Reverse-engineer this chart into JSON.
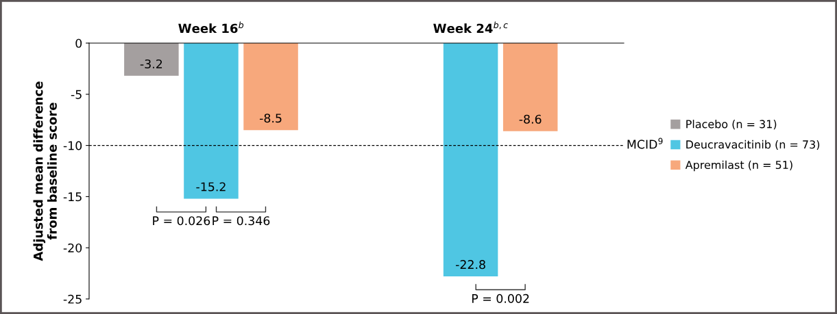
{
  "chart_data": {
    "type": "bar",
    "ylabel": "Adjusted mean difference\nfrom baseline score",
    "categories": [
      "Week 16$^{b}$",
      "Week 24$^{b,c}$"
    ],
    "series": [
      {
        "name": "Placebo (n = 31)",
        "color": "#a49f9f",
        "values": [
          -3.2,
          null
        ]
      },
      {
        "name": "Deucravacitinib (n = 73)",
        "color": "#4fc6e3",
        "values": [
          -15.2,
          -22.8
        ]
      },
      {
        "name": "Apremilast (n = 51)",
        "color": "#f7a87c",
        "values": [
          -8.5,
          -8.6
        ]
      }
    ],
    "ylim": [
      -25,
      0
    ],
    "yticks": [
      {
        "value": 0,
        "label": "0"
      },
      {
        "value": -5,
        "label": "-5"
      },
      {
        "value": -10,
        "label": "-10"
      },
      {
        "value": -15,
        "label": "-15"
      },
      {
        "value": -20,
        "label": "-20"
      },
      {
        "value": -25,
        "label": "-25"
      }
    ],
    "data_labels": true,
    "ref_lines": [
      {
        "axis": "y",
        "value": -10,
        "label": "MCID$^{9}$",
        "color": "#000000",
        "line_style": "dashed"
      }
    ],
    "annotations": [
      "P = 0.026",
      "P = 0.346",
      "P = 0.002"
    ],
    "legend": "right",
    "grid": false
  }
}
